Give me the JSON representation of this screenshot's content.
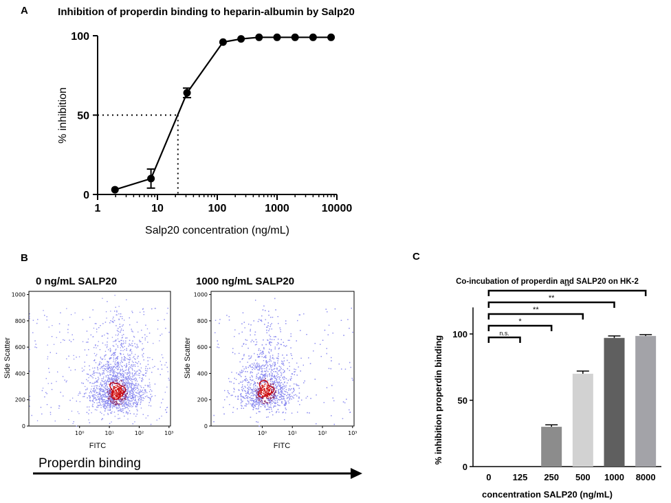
{
  "panel_labels": {
    "a": "A",
    "b": "B",
    "c": "C"
  },
  "chart_data": [
    {
      "id": "A",
      "type": "line",
      "title": "Inhibition of properdin binding to heparin-albumin by Salp20",
      "xlabel": "Salp20 concentration (ng/mL)",
      "ylabel": "% inhibition",
      "xscale": "log",
      "xlim": [
        1,
        10000
      ],
      "ylim": [
        0,
        100
      ],
      "xticks": [
        "1",
        "10",
        "100",
        "1000",
        "10000"
      ],
      "yticks": [
        "0",
        "50",
        "100"
      ],
      "x": [
        1.95,
        7.8,
        31.25,
        125,
        250,
        500,
        1000,
        2000,
        4000,
        8000
      ],
      "y": [
        3,
        10,
        64,
        96,
        98,
        99,
        99,
        99,
        99,
        99
      ],
      "error": [
        0.5,
        6,
        3,
        0.5,
        0.5,
        0.3,
        0.3,
        0.3,
        0.3,
        0.3
      ],
      "ic50_reference": {
        "x": 22,
        "y": 50
      }
    },
    {
      "id": "B",
      "type": "scatter",
      "xlabel_shared": "Properdin binding",
      "plots": [
        {
          "title": "0 ng/mL SALP20",
          "xlabel": "FITC",
          "ylabel": "Side Scatter",
          "xticks": [
            "10⁰",
            "10¹",
            "10²",
            "10³"
          ],
          "yticks": [
            "0",
            "200",
            "400",
            "600",
            "800",
            "1000"
          ],
          "center_log_fitc": 1.25,
          "center_side_scatter": 260
        },
        {
          "title": "1000 ng/mL SALP20",
          "xlabel": "FITC",
          "ylabel": "Side Scatter",
          "xticks": [
            "10⁰",
            "10¹",
            "10²",
            "10³"
          ],
          "yticks": [
            "0",
            "200",
            "400",
            "600",
            "800",
            "1000"
          ],
          "center_log_fitc": 0.1,
          "center_side_scatter": 270
        }
      ]
    },
    {
      "id": "C",
      "type": "bar",
      "title": "Co-incubation of properdin and SALP20 on HK-2",
      "xlabel": "concentration SALP20 (ng/mL)",
      "ylabel": "% inhibition properdin binding",
      "ylim": [
        0,
        120
      ],
      "yticks": [
        "0",
        "50",
        "100"
      ],
      "categories": [
        "0",
        "125",
        "250",
        "500",
        "1000",
        "8000"
      ],
      "values": [
        0,
        0,
        30,
        70,
        97,
        98.5
      ],
      "error": [
        0,
        0,
        1.5,
        2,
        1.5,
        1
      ],
      "colors": [
        "#ffffff",
        "#ffffff",
        "#8c8c8c",
        "#d2d2d2",
        "#5f5f5f",
        "#a3a3a8"
      ],
      "significance": [
        {
          "to": "125",
          "label": "n.s."
        },
        {
          "to": "250",
          "label": "*"
        },
        {
          "to": "500",
          "label": "**"
        },
        {
          "to": "1000",
          "label": "**"
        },
        {
          "to": "8000",
          "label": "**"
        }
      ]
    }
  ]
}
